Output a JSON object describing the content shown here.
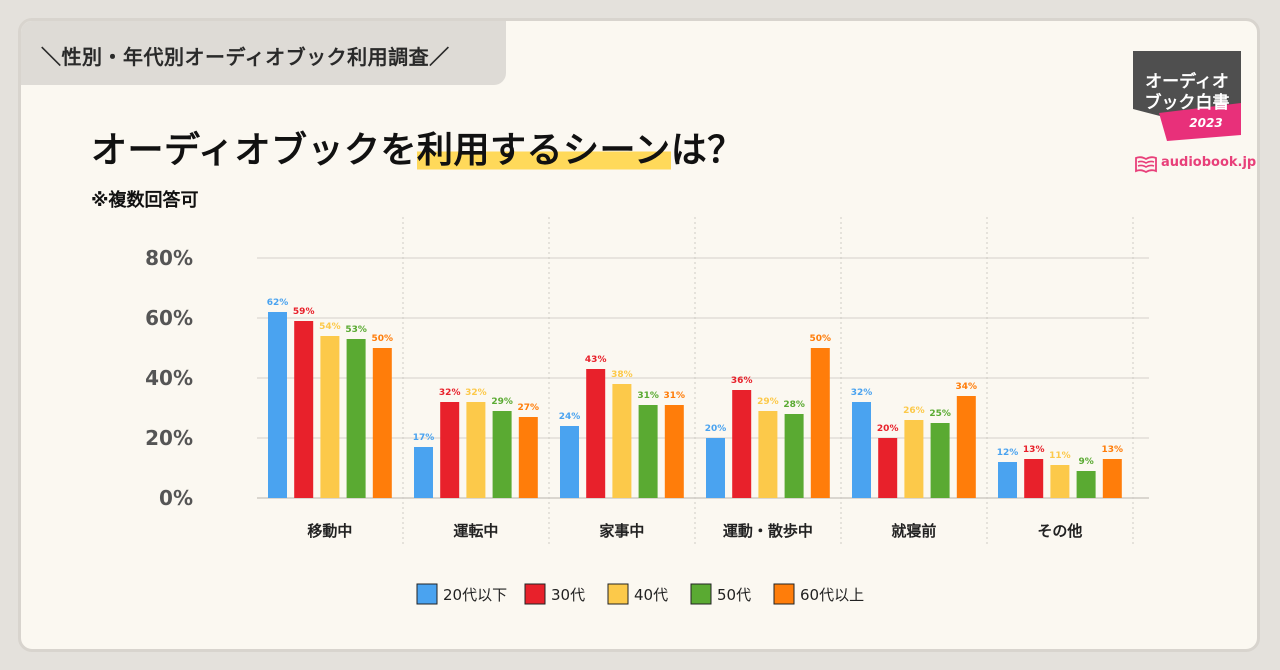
{
  "header": {
    "survey_label": "＼性別・年代別オーディオブック利用調査／",
    "title_part1": "オーディオブックを",
    "title_highlight": "利用するシーン",
    "title_part2": "は？",
    "note": "※複数回答可"
  },
  "logo": {
    "badge_line1": "オーディオ",
    "badge_line2": "ブック白書",
    "badge_year": "2023",
    "brand": "audiobook.jp"
  },
  "colors": {
    "accent_highlight": "#ffd95a",
    "badge_dark": "#4f4f4f",
    "badge_pink": "#e8307a",
    "brand_pink": "#e8407a"
  },
  "chart_data": {
    "type": "bar",
    "title": "オーディオブックを利用するシーンは？",
    "ylim": [
      0,
      80
    ],
    "yticks": [
      0,
      20,
      40,
      60,
      80
    ],
    "ytick_labels": [
      "0%",
      "20%",
      "40%",
      "60%",
      "80%"
    ],
    "categories": [
      "移動中",
      "運転中",
      "家事中",
      "運動・散歩中",
      "就寝前",
      "その他"
    ],
    "series": [
      {
        "name": "20代以下",
        "color": "#4aa3f0",
        "values": [
          62,
          17,
          24,
          20,
          32,
          12
        ]
      },
      {
        "name": "30代",
        "color": "#e8212b",
        "values": [
          59,
          32,
          43,
          36,
          20,
          13
        ]
      },
      {
        "name": "40代",
        "color": "#fcc94a",
        "values": [
          54,
          32,
          38,
          29,
          26,
          11
        ]
      },
      {
        "name": "50代",
        "color": "#5aaa32",
        "values": [
          53,
          29,
          31,
          28,
          25,
          9
        ]
      },
      {
        "name": "60代以上",
        "color": "#ff7d0a",
        "values": [
          50,
          27,
          31,
          50,
          34,
          13
        ]
      }
    ],
    "label_suffix": "%",
    "legend_position": "bottom"
  }
}
